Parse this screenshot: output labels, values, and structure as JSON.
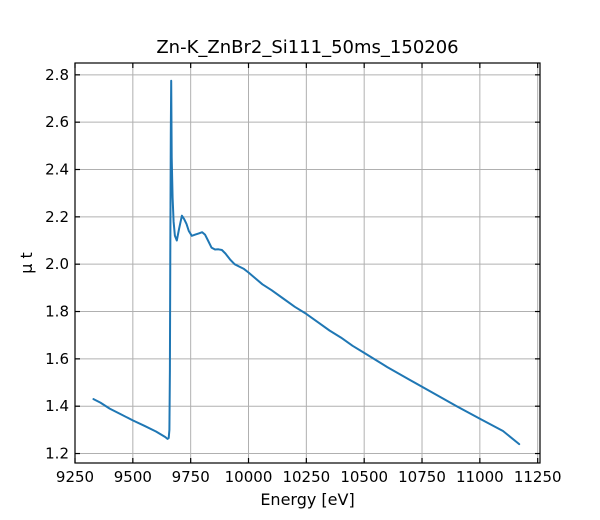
{
  "chart_data": {
    "type": "line",
    "title": "Zn-K_ZnBr2_Si111_50ms_150206",
    "xlabel": "Energy [eV]",
    "ylabel": "μ t",
    "xlim": [
      9250,
      11260
    ],
    "ylim": [
      1.16,
      2.85
    ],
    "grid": true,
    "x_ticks": [
      9250,
      9500,
      9750,
      10000,
      10250,
      10500,
      10750,
      11000,
      11250
    ],
    "y_ticks": [
      1.2,
      1.4,
      1.6,
      1.8,
      2.0,
      2.2,
      2.4,
      2.6,
      2.8
    ],
    "x_tick_labels": [
      "9250",
      "9500",
      "9750",
      "10000",
      "10250",
      "10500",
      "10750",
      "11000",
      "11250"
    ],
    "y_tick_labels": [
      "1.2",
      "1.4",
      "1.6",
      "1.8",
      "2.0",
      "2.2",
      "2.4",
      "2.6",
      "2.8"
    ],
    "series": [
      {
        "color": "#1f77b4",
        "x": [
          9330,
          9360,
          9400,
          9450,
          9500,
          9550,
          9600,
          9640,
          9650,
          9655,
          9658,
          9660,
          9662,
          9664,
          9666,
          9668,
          9672,
          9676,
          9682,
          9690,
          9700,
          9712,
          9722,
          9732,
          9742,
          9755,
          9770,
          9785,
          9800,
          9812,
          9825,
          9840,
          9855,
          9870,
          9885,
          9900,
          9920,
          9940,
          9960,
          9980,
          10000,
          10030,
          10060,
          10100,
          10150,
          10200,
          10250,
          10300,
          10350,
          10400,
          10450,
          10500,
          10600,
          10700,
          10800,
          10900,
          11000,
          11100,
          11170
        ],
        "y": [
          1.43,
          1.415,
          1.39,
          1.365,
          1.34,
          1.317,
          1.293,
          1.27,
          1.262,
          1.265,
          1.3,
          1.55,
          2.05,
          2.55,
          2.775,
          2.45,
          2.28,
          2.18,
          2.12,
          2.1,
          2.15,
          2.205,
          2.19,
          2.17,
          2.14,
          2.12,
          2.125,
          2.13,
          2.135,
          2.125,
          2.1,
          2.07,
          2.062,
          2.063,
          2.06,
          2.045,
          2.02,
          2.0,
          1.99,
          1.98,
          1.965,
          1.94,
          1.915,
          1.89,
          1.855,
          1.82,
          1.79,
          1.755,
          1.72,
          1.69,
          1.655,
          1.625,
          1.565,
          1.51,
          1.455,
          1.4,
          1.347,
          1.295,
          1.24
        ]
      }
    ]
  }
}
